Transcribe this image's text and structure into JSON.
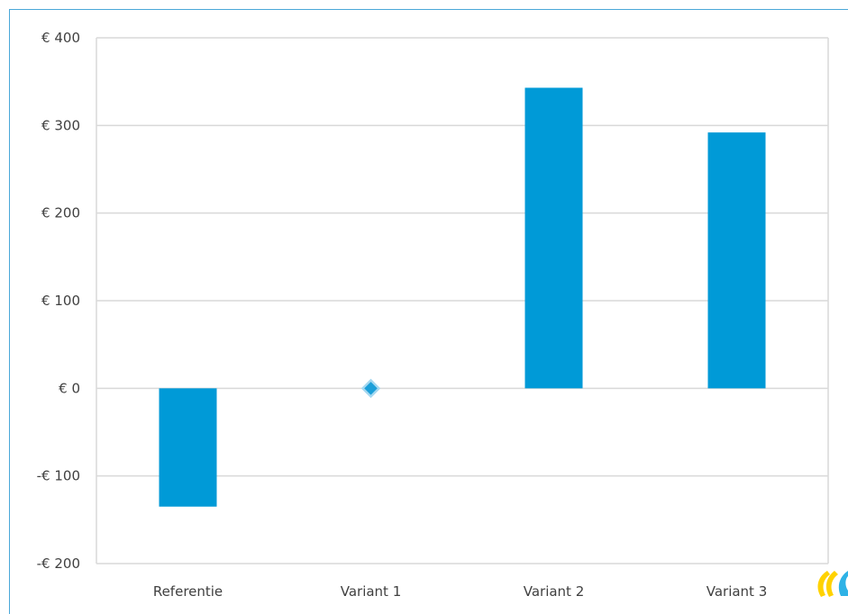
{
  "chart_data": {
    "type": "bar",
    "categories": [
      "Referentie",
      "Variant 1",
      "Variant 2",
      "Variant 3"
    ],
    "values": [
      -135,
      0,
      343,
      292
    ],
    "markers": [
      {
        "category": "Variant 1",
        "value": 0,
        "shape": "diamond"
      }
    ],
    "ylim": [
      -200,
      400
    ],
    "yticks": [
      400,
      300,
      200,
      100,
      0,
      -100,
      -200
    ],
    "ytick_labels": [
      "€ 400",
      "€ 300",
      "€ 200",
      "€ 100",
      "€ 0",
      "-€ 100",
      "-€ 200"
    ],
    "title": "",
    "xlabel": "",
    "ylabel": "",
    "grid": true,
    "legend": "none",
    "colors": {
      "bar": "#009ad7",
      "marker": "#1b9fd9",
      "marker_edge": "#a5d8f0",
      "grid": "#d9d9d9",
      "frame": "#4aa8d8"
    }
  },
  "logo": {
    "icon": "company-logo-icon",
    "colors": [
      "#ffd200",
      "#2eb2e6"
    ]
  }
}
